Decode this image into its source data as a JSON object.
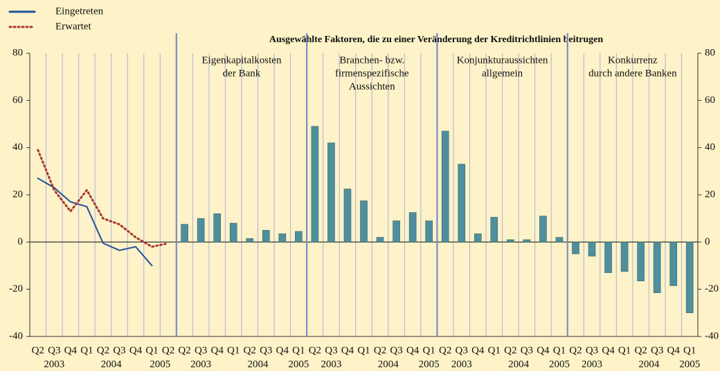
{
  "chart_data": {
    "type": "combo",
    "title": "Ausgewählte Faktoren, die zu einer Veränderung der Kreditrichtlinien beitrugen",
    "ylim": [
      -40,
      80
    ],
    "yticks": [
      -40,
      -20,
      0,
      20,
      40,
      60,
      80
    ],
    "color": "#4f8f9d",
    "panels": [
      {
        "type": "line",
        "years": [
          {
            "label": "2003",
            "quarters": [
              "Q2",
              "Q3",
              "Q4"
            ]
          },
          {
            "label": "2004",
            "quarters": [
              "Q1",
              "Q2",
              "Q3",
              "Q4"
            ]
          },
          {
            "label": "2005",
            "quarters": [
              "Q1",
              "Q2"
            ]
          }
        ],
        "series": [
          {
            "name": "Eingetreten",
            "color": "#1f4f9c",
            "dash": "none",
            "values": [
              27,
              23,
              17,
              15,
              -0.5,
              -3.5,
              -2,
              -10,
              null
            ]
          },
          {
            "name": "Erwartet",
            "color": "#a8352e",
            "dash": "2 4",
            "values": [
              39,
              22,
              13,
              22,
              10,
              7.5,
              2,
              -2,
              -0.5
            ]
          }
        ]
      },
      {
        "type": "bar",
        "name": [
          "Eigenkapitalkosten",
          "der Bank"
        ],
        "years": [
          {
            "label": "2003",
            "quarters": [
              "Q2",
              "Q3",
              "Q4"
            ]
          },
          {
            "label": "2004",
            "quarters": [
              "Q1",
              "Q2",
              "Q3",
              "Q4"
            ]
          },
          {
            "label": "2005",
            "quarters": [
              "Q1"
            ]
          }
        ],
        "values": [
          7.5,
          10,
          12,
          8,
          1.5,
          5,
          3.5,
          4.5
        ]
      },
      {
        "type": "bar",
        "name": [
          "Branchen- bzw.",
          "firmenspezifische",
          "Aussichten"
        ],
        "years": [
          {
            "label": "2003",
            "quarters": [
              "Q2",
              "Q3",
              "Q4"
            ]
          },
          {
            "label": "2004",
            "quarters": [
              "Q1",
              "Q2",
              "Q3",
              "Q4"
            ]
          },
          {
            "label": "2005",
            "quarters": [
              "Q1"
            ]
          }
        ],
        "values": [
          49,
          42,
          22.5,
          17.5,
          2,
          9,
          12.5,
          9
        ]
      },
      {
        "type": "bar",
        "name": [
          "Konjunkturaussichten",
          "allgemein"
        ],
        "years": [
          {
            "label": "2003",
            "quarters": [
              "Q2",
              "Q3",
              "Q4"
            ]
          },
          {
            "label": "2004",
            "quarters": [
              "Q1",
              "Q2",
              "Q3",
              "Q4"
            ]
          },
          {
            "label": "2005",
            "quarters": [
              "Q1"
            ]
          }
        ],
        "values": [
          47,
          33,
          3.5,
          10.5,
          1,
          1,
          11,
          2
        ]
      },
      {
        "type": "bar",
        "name": [
          "Konkurrenz",
          "durch andere Banken"
        ],
        "years": [
          {
            "label": "2003",
            "quarters": [
              "Q2",
              "Q3",
              "Q4"
            ]
          },
          {
            "label": "2004",
            "quarters": [
              "Q1",
              "Q2",
              "Q3",
              "Q4"
            ]
          },
          {
            "label": "2005",
            "quarters": [
              "Q1"
            ]
          }
        ],
        "values": [
          -5,
          -6,
          -13,
          -12.5,
          -16.5,
          -21.5,
          -18.5,
          -30
        ]
      }
    ]
  }
}
